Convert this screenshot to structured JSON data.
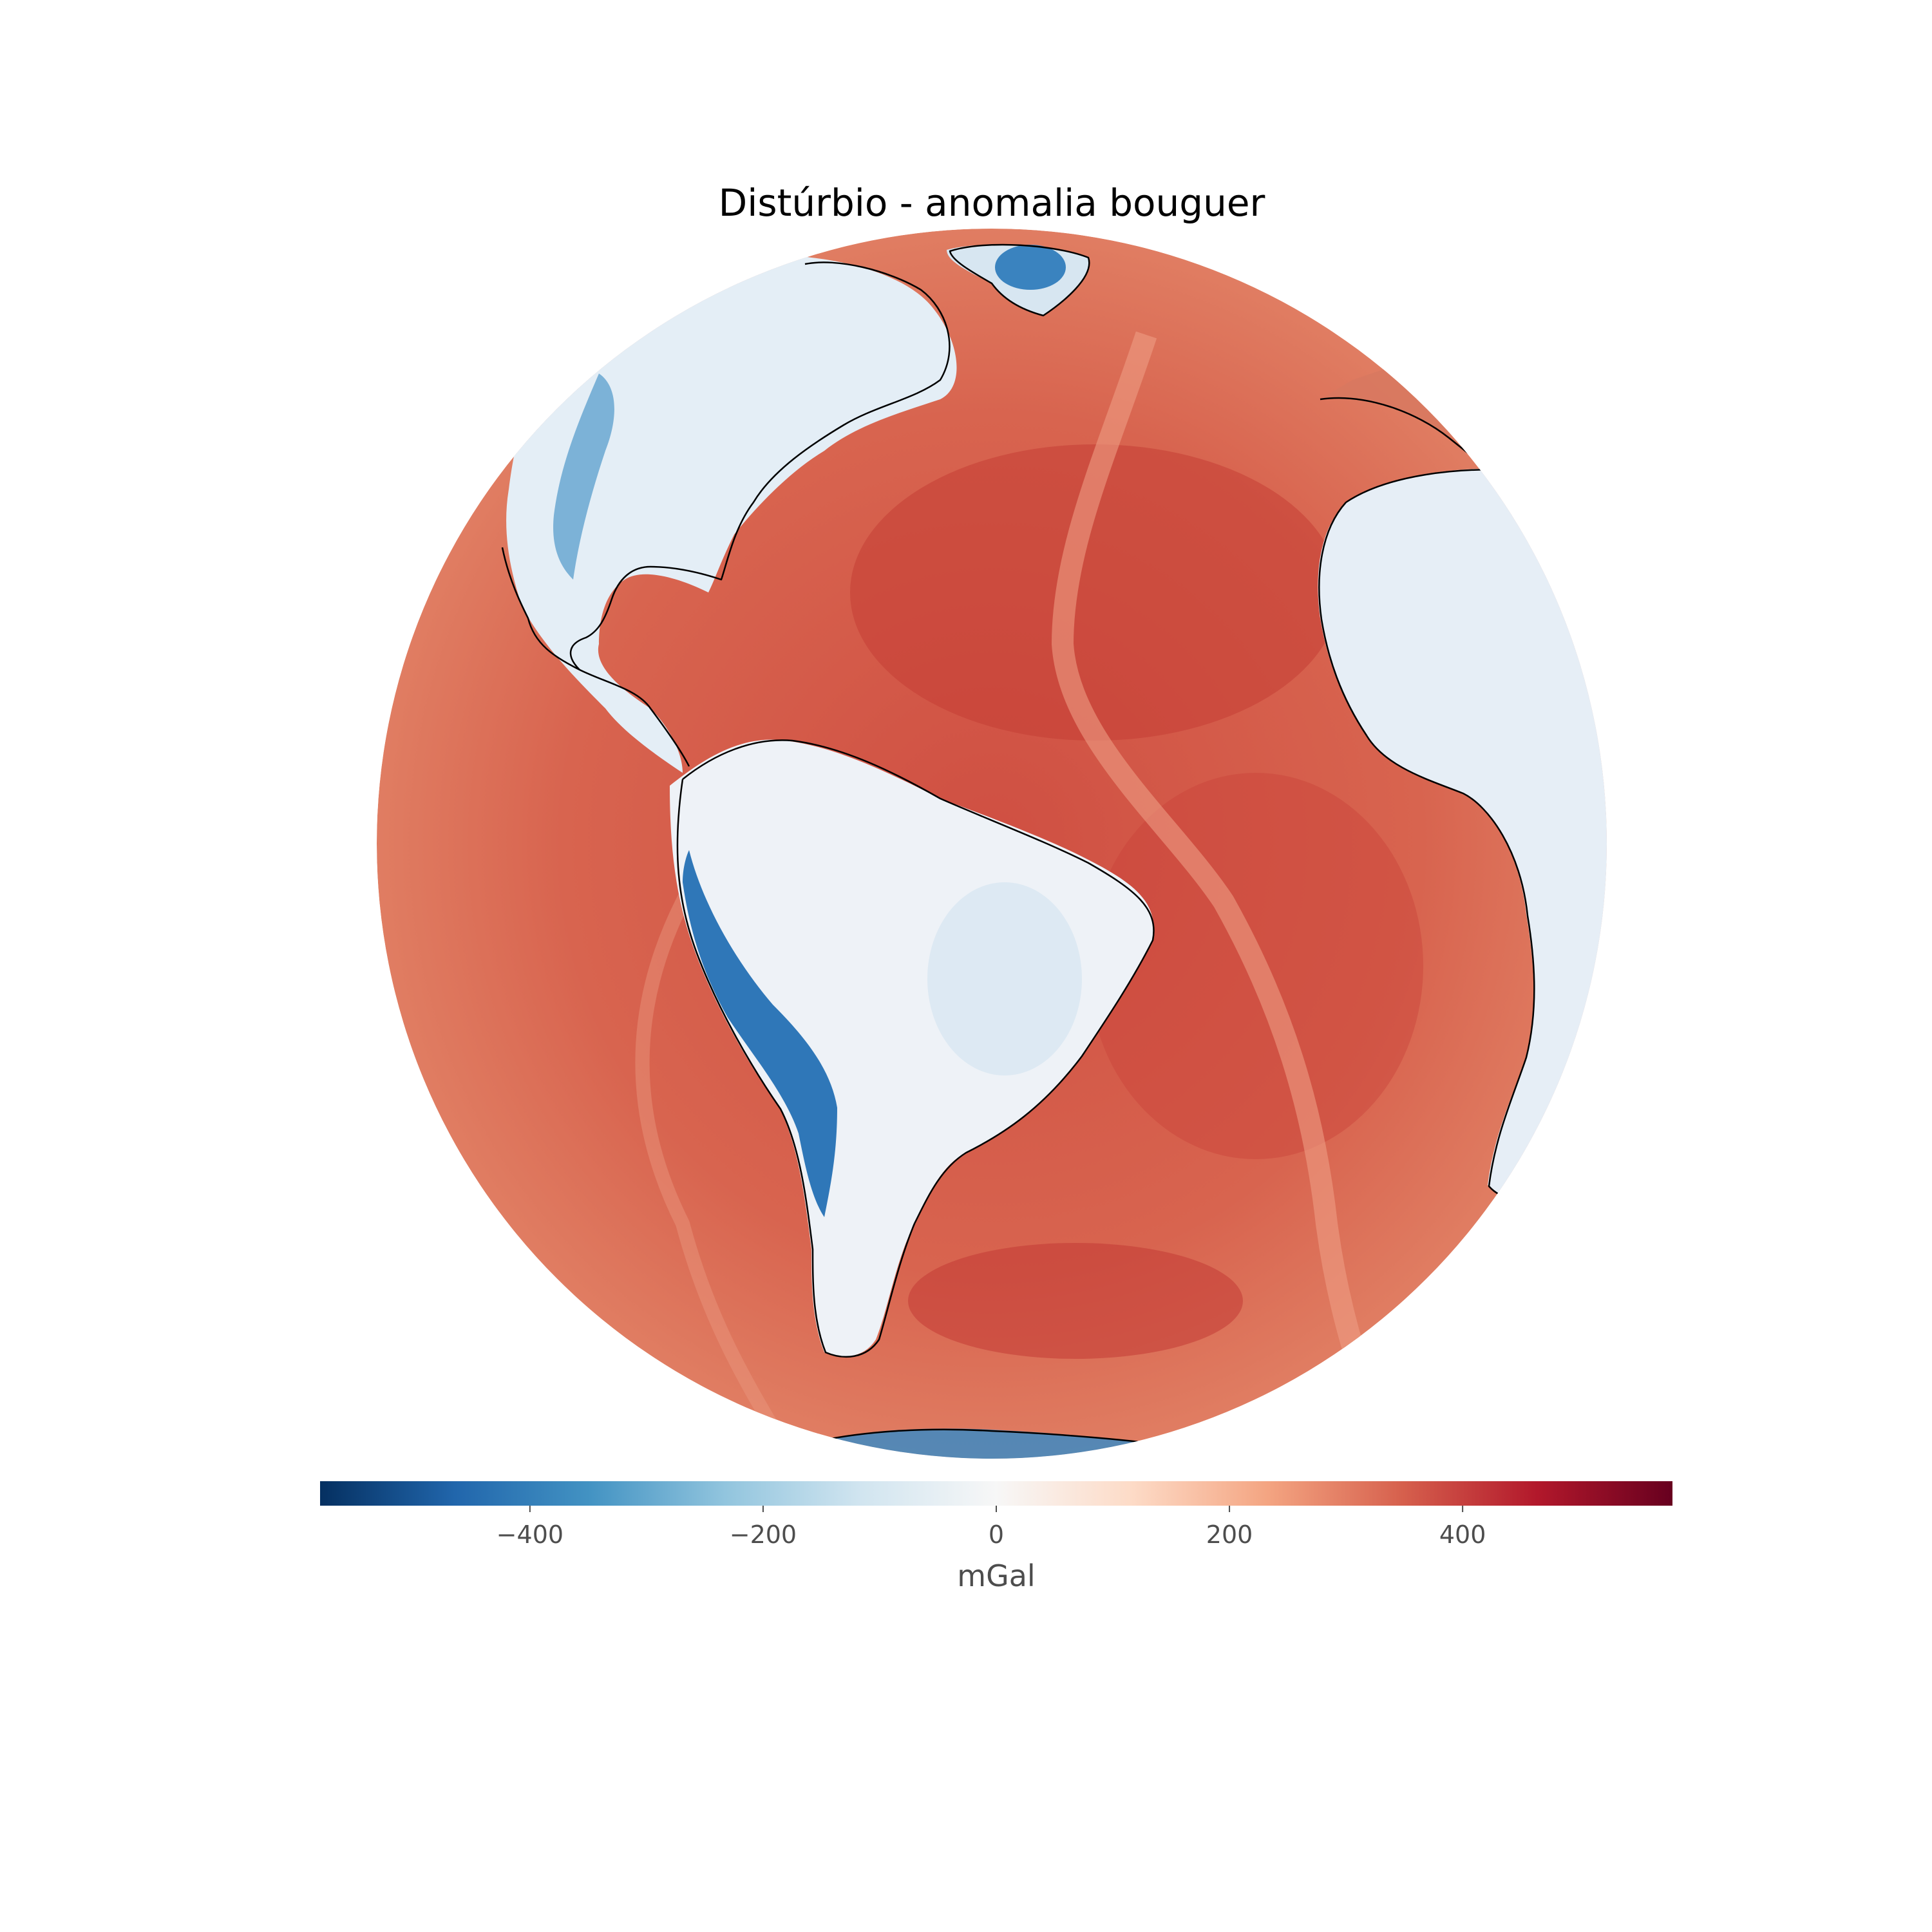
{
  "figure": {
    "title": "Distúrbio - anomalia bouguer",
    "projection": "orthographic",
    "map_center_label": "Atlantic Ocean (South America, Africa, North America, Europe visible)"
  },
  "colorbar": {
    "colormap": "RdBu_r",
    "vmin": -580,
    "vmax": 580,
    "ticks": [
      {
        "value": -400,
        "label": "−400"
      },
      {
        "value": -200,
        "label": "−200"
      },
      {
        "value": 0,
        "label": "0"
      },
      {
        "value": 200,
        "label": "200"
      },
      {
        "value": 400,
        "label": "400"
      }
    ],
    "label": "mGal",
    "colors": [
      "#053061",
      "#2166ac",
      "#4393c3",
      "#92c5de",
      "#d1e5f0",
      "#f7f7f7",
      "#fddbc7",
      "#f4a582",
      "#d6604d",
      "#b2182b",
      "#67001f"
    ]
  },
  "map_colors": {
    "ocean": "#d8634e",
    "ocean_deep": "#c73e36",
    "land": "#e6eef5",
    "land_low": "#cfe2ef",
    "andes": "#2f77b8",
    "coastline": "#000000"
  }
}
